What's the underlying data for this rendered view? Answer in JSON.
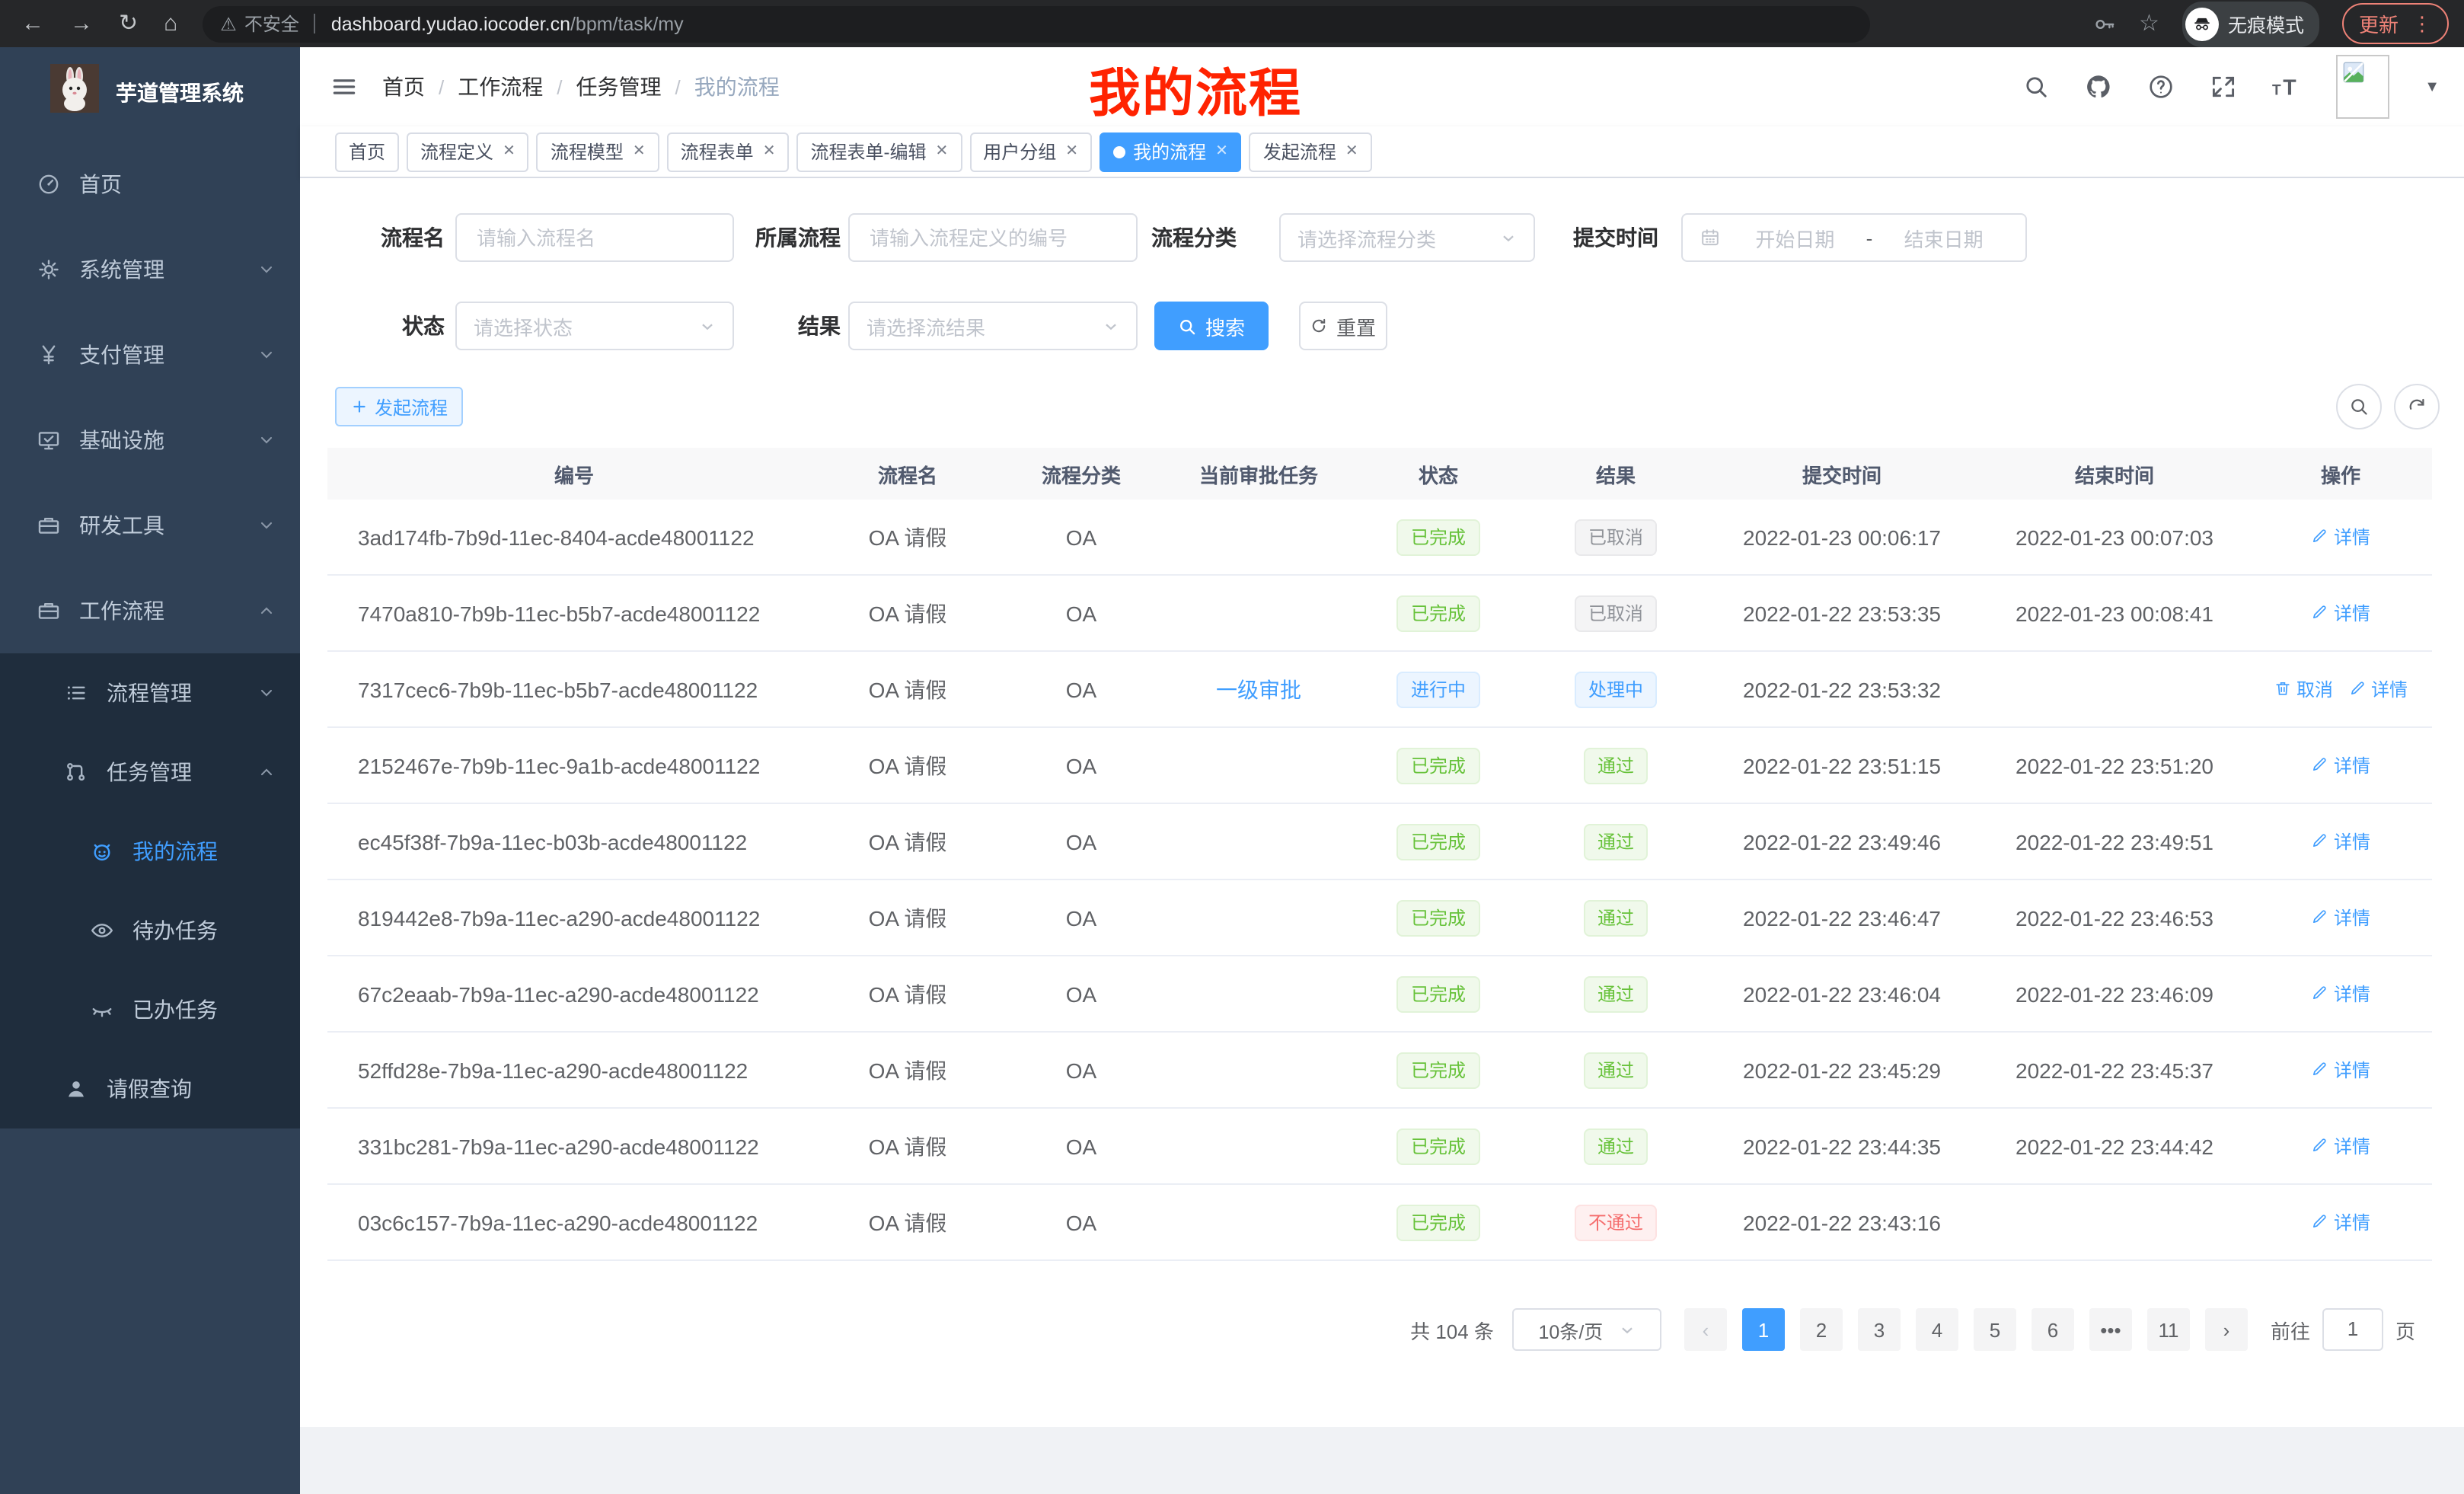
{
  "browser": {
    "security_label": "不安全",
    "url_domain": "dashboard.yudao.iocoder.cn",
    "url_path": "/bpm/task/my",
    "incognito_label": "无痕模式",
    "update_label": "更新"
  },
  "sidebar": {
    "title": "芋道管理系统",
    "items": [
      {
        "key": "home",
        "label": "首页",
        "icon": "dashboard",
        "level": 1,
        "chevron": null,
        "active": false
      },
      {
        "key": "system",
        "label": "系统管理",
        "icon": "gear",
        "level": 1,
        "chevron": "down",
        "active": false
      },
      {
        "key": "payment",
        "label": "支付管理",
        "icon": "yen",
        "level": 1,
        "chevron": "down",
        "active": false
      },
      {
        "key": "infrastructure",
        "label": "基础设施",
        "icon": "infra",
        "level": 1,
        "chevron": "down",
        "active": false
      },
      {
        "key": "dev-tools",
        "label": "研发工具",
        "icon": "toolbox",
        "level": 1,
        "chevron": "down",
        "active": false
      },
      {
        "key": "workflow",
        "label": "工作流程",
        "icon": "toolbox",
        "level": 1,
        "chevron": "up",
        "active": false
      },
      {
        "key": "process-mgmt",
        "label": "流程管理",
        "icon": "list",
        "level": 2,
        "chevron": "down",
        "active": false
      },
      {
        "key": "task-mgmt",
        "label": "任务管理",
        "icon": "tasks",
        "level": 2,
        "chevron": "up",
        "active": false
      },
      {
        "key": "my-process",
        "label": "我的流程",
        "icon": "robot",
        "level": 3,
        "chevron": null,
        "active": true
      },
      {
        "key": "todo-tasks",
        "label": "待办任务",
        "icon": "eye",
        "level": 3,
        "chevron": null,
        "active": false
      },
      {
        "key": "done-tasks",
        "label": "已办任务",
        "icon": "eyeclosed",
        "level": 3,
        "chevron": null,
        "active": false
      },
      {
        "key": "leave-query",
        "label": "请假查询",
        "icon": "user",
        "level": 2,
        "chevron": null,
        "active": false
      }
    ]
  },
  "header": {
    "breadcrumb": [
      "首页",
      "工作流程",
      "任务管理",
      "我的流程"
    ],
    "overlay_title": "我的流程"
  },
  "tabs": [
    {
      "key": "home",
      "label": "首页",
      "closable": false,
      "active": false
    },
    {
      "key": "process-definition",
      "label": "流程定义",
      "closable": true,
      "active": false
    },
    {
      "key": "process-model",
      "label": "流程模型",
      "closable": true,
      "active": false
    },
    {
      "key": "process-form",
      "label": "流程表单",
      "closable": true,
      "active": false
    },
    {
      "key": "process-form-edit",
      "label": "流程表单-编辑",
      "closable": true,
      "active": false
    },
    {
      "key": "user-group",
      "label": "用户分组",
      "closable": true,
      "active": false
    },
    {
      "key": "my-process",
      "label": "我的流程",
      "closable": true,
      "active": true
    },
    {
      "key": "start-process",
      "label": "发起流程",
      "closable": true,
      "active": false
    }
  ],
  "filters": {
    "process_name": {
      "label": "流程名",
      "placeholder": "请输入流程名"
    },
    "process_def": {
      "label": "所属流程",
      "placeholder": "请输入流程定义的编号"
    },
    "category": {
      "label": "流程分类",
      "placeholder": "请选择流程分类"
    },
    "submit_time": {
      "label": "提交时间",
      "start_placeholder": "开始日期",
      "separator": "-",
      "end_placeholder": "结束日期"
    },
    "status": {
      "label": "状态",
      "placeholder": "请选择状态"
    },
    "result": {
      "label": "结果",
      "placeholder": "请选择流结果"
    }
  },
  "actions": {
    "create": "发起流程",
    "search": "搜索",
    "reset": "重置"
  },
  "table": {
    "columns": [
      "编号",
      "流程名",
      "流程分类",
      "当前审批任务",
      "状态",
      "结果",
      "提交时间",
      "结束时间",
      "操作"
    ],
    "rows": [
      {
        "id": "3ad174fb-7b9d-11ec-8404-acde48001122",
        "name": "OA 请假",
        "category": "OA",
        "task": "",
        "status": {
          "text": "已完成",
          "type": "success"
        },
        "result": {
          "text": "已取消",
          "type": "info"
        },
        "submit_time": "2022-01-23 00:06:17",
        "end_time": "2022-01-23 00:07:03",
        "ops": [
          {
            "name": "detail",
            "icon": "pencil",
            "text": "详情"
          }
        ]
      },
      {
        "id": "7470a810-7b9b-11ec-b5b7-acde48001122",
        "name": "OA 请假",
        "category": "OA",
        "task": "",
        "status": {
          "text": "已完成",
          "type": "success"
        },
        "result": {
          "text": "已取消",
          "type": "info"
        },
        "submit_time": "2022-01-22 23:53:35",
        "end_time": "2022-01-23 00:08:41",
        "ops": [
          {
            "name": "detail",
            "icon": "pencil",
            "text": "详情"
          }
        ]
      },
      {
        "id": "7317cec6-7b9b-11ec-b5b7-acde48001122",
        "name": "OA 请假",
        "category": "OA",
        "task": "一级审批",
        "status": {
          "text": "进行中",
          "type": "primary"
        },
        "result": {
          "text": "处理中",
          "type": "primary"
        },
        "submit_time": "2022-01-22 23:53:32",
        "end_time": "",
        "ops": [
          {
            "name": "cancel",
            "icon": "trash",
            "text": "取消"
          },
          {
            "name": "detail",
            "icon": "pencil",
            "text": "详情"
          }
        ]
      },
      {
        "id": "2152467e-7b9b-11ec-9a1b-acde48001122",
        "name": "OA 请假",
        "category": "OA",
        "task": "",
        "status": {
          "text": "已完成",
          "type": "success"
        },
        "result": {
          "text": "通过",
          "type": "success"
        },
        "submit_time": "2022-01-22 23:51:15",
        "end_time": "2022-01-22 23:51:20",
        "ops": [
          {
            "name": "detail",
            "icon": "pencil",
            "text": "详情"
          }
        ]
      },
      {
        "id": "ec45f38f-7b9a-11ec-b03b-acde48001122",
        "name": "OA 请假",
        "category": "OA",
        "task": "",
        "status": {
          "text": "已完成",
          "type": "success"
        },
        "result": {
          "text": "通过",
          "type": "success"
        },
        "submit_time": "2022-01-22 23:49:46",
        "end_time": "2022-01-22 23:49:51",
        "ops": [
          {
            "name": "detail",
            "icon": "pencil",
            "text": "详情"
          }
        ]
      },
      {
        "id": "819442e8-7b9a-11ec-a290-acde48001122",
        "name": "OA 请假",
        "category": "OA",
        "task": "",
        "status": {
          "text": "已完成",
          "type": "success"
        },
        "result": {
          "text": "通过",
          "type": "success"
        },
        "submit_time": "2022-01-22 23:46:47",
        "end_time": "2022-01-22 23:46:53",
        "ops": [
          {
            "name": "detail",
            "icon": "pencil",
            "text": "详情"
          }
        ]
      },
      {
        "id": "67c2eaab-7b9a-11ec-a290-acde48001122",
        "name": "OA 请假",
        "category": "OA",
        "task": "",
        "status": {
          "text": "已完成",
          "type": "success"
        },
        "result": {
          "text": "通过",
          "type": "success"
        },
        "submit_time": "2022-01-22 23:46:04",
        "end_time": "2022-01-22 23:46:09",
        "ops": [
          {
            "name": "detail",
            "icon": "pencil",
            "text": "详情"
          }
        ]
      },
      {
        "id": "52ffd28e-7b9a-11ec-a290-acde48001122",
        "name": "OA 请假",
        "category": "OA",
        "task": "",
        "status": {
          "text": "已完成",
          "type": "success"
        },
        "result": {
          "text": "通过",
          "type": "success"
        },
        "submit_time": "2022-01-22 23:45:29",
        "end_time": "2022-01-22 23:45:37",
        "ops": [
          {
            "name": "detail",
            "icon": "pencil",
            "text": "详情"
          }
        ]
      },
      {
        "id": "331bc281-7b9a-11ec-a290-acde48001122",
        "name": "OA 请假",
        "category": "OA",
        "task": "",
        "status": {
          "text": "已完成",
          "type": "success"
        },
        "result": {
          "text": "通过",
          "type": "success"
        },
        "submit_time": "2022-01-22 23:44:35",
        "end_time": "2022-01-22 23:44:42",
        "ops": [
          {
            "name": "detail",
            "icon": "pencil",
            "text": "详情"
          }
        ]
      },
      {
        "id": "03c6c157-7b9a-11ec-a290-acde48001122",
        "name": "OA 请假",
        "category": "OA",
        "task": "",
        "status": {
          "text": "已完成",
          "type": "success"
        },
        "result": {
          "text": "不通过",
          "type": "danger"
        },
        "submit_time": "2022-01-22 23:43:16",
        "end_time": "",
        "ops": [
          {
            "name": "detail",
            "icon": "pencil",
            "text": "详情"
          }
        ]
      }
    ]
  },
  "pagination": {
    "total": "共 104 条",
    "page_size": "10条/页",
    "pages": [
      "1",
      "2",
      "3",
      "4",
      "5",
      "6",
      "•••",
      "11"
    ],
    "active_page": "1",
    "prev": "‹",
    "next": "›",
    "goto_label": "前往",
    "goto_value": "1",
    "unit_label": "页"
  },
  "colors": {
    "accent": "#409eff",
    "sidebar_bg": "#304156",
    "submenu_bg": "#1f2d3d",
    "overlay_red": "#ff2301",
    "success": "#67c23a",
    "danger": "#f56c6c",
    "info": "#909399"
  }
}
